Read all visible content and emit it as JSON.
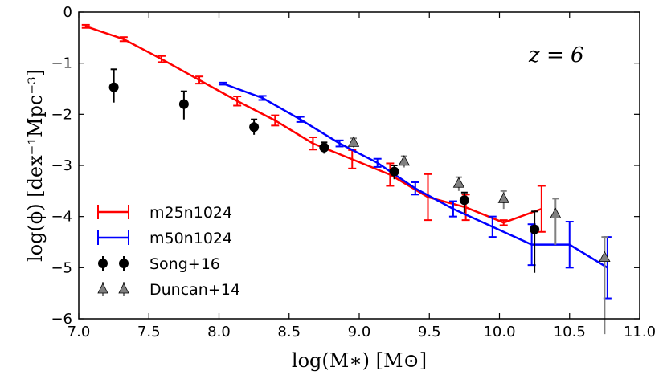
{
  "chart_data": {
    "type": "line",
    "title": "",
    "xlabel": "log(M∗) [M⊙]",
    "ylabel": "log(ϕ) [dex⁻¹Mpc⁻³]",
    "xlim": [
      7.0,
      11.0
    ],
    "ylim": [
      -6,
      0
    ],
    "x_ticks": [
      "7.0",
      "7.5",
      "8.0",
      "8.5",
      "9.0",
      "9.5",
      "10.0",
      "10.5",
      "11.0"
    ],
    "y_ticks": [
      "0",
      "−1",
      "−2",
      "−3",
      "−4",
      "−5",
      "−6"
    ],
    "annotation": "z = 6",
    "grid": false,
    "legend_position": "lower-left",
    "series": [
      {
        "name": "m25n1024",
        "kind": "line-errorbar",
        "color": "#ff0000",
        "x": [
          7.05,
          7.32,
          7.59,
          7.86,
          8.13,
          8.4,
          8.67,
          8.95,
          9.22,
          9.49,
          9.76,
          10.03,
          10.3
        ],
        "y": [
          -0.28,
          -0.53,
          -0.92,
          -1.33,
          -1.74,
          -2.12,
          -2.57,
          -2.88,
          -3.18,
          -3.62,
          -3.82,
          -4.12,
          -3.85
        ],
        "err": [
          0.03,
          0.04,
          0.06,
          0.07,
          0.09,
          0.1,
          0.12,
          0.18,
          0.22,
          0.45,
          0.25,
          0.05,
          0.45
        ]
      },
      {
        "name": "m50n1024",
        "kind": "line-errorbar",
        "color": "#0000ff",
        "x": [
          8.03,
          8.31,
          8.58,
          8.86,
          9.13,
          9.4,
          9.67,
          9.95,
          10.23,
          10.5,
          10.77
        ],
        "y": [
          -1.4,
          -1.68,
          -2.1,
          -2.57,
          -2.95,
          -3.45,
          -3.85,
          -4.2,
          -4.55,
          -4.55,
          -5.0
        ],
        "err": [
          0.02,
          0.04,
          0.05,
          0.06,
          0.08,
          0.12,
          0.15,
          0.2,
          0.4,
          0.45,
          0.6
        ]
      },
      {
        "name": "Song+16",
        "kind": "points",
        "color": "#000000",
        "marker": "circle",
        "x": [
          7.25,
          7.75,
          8.25,
          8.75,
          9.25,
          9.75,
          10.25
        ],
        "y": [
          -1.47,
          -1.8,
          -2.25,
          -2.65,
          -3.12,
          -3.68,
          -4.25
        ],
        "err_up": [
          0.35,
          0.25,
          0.15,
          0.1,
          0.12,
          0.15,
          0.35
        ],
        "err_down": [
          0.3,
          0.3,
          0.15,
          0.12,
          0.15,
          0.25,
          0.85
        ]
      },
      {
        "name": "Duncan+14",
        "kind": "points",
        "color": "#808080",
        "marker": "triangle",
        "x": [
          8.96,
          9.32,
          9.71,
          10.03,
          10.4,
          10.75
        ],
        "y": [
          -2.55,
          -2.92,
          -3.35,
          -3.65,
          -3.95,
          -4.8
        ],
        "err_up": [
          0.08,
          0.1,
          0.12,
          0.15,
          0.3,
          0.4
        ],
        "err_down": [
          0.1,
          0.12,
          0.15,
          0.2,
          0.6,
          1.5
        ]
      }
    ]
  }
}
